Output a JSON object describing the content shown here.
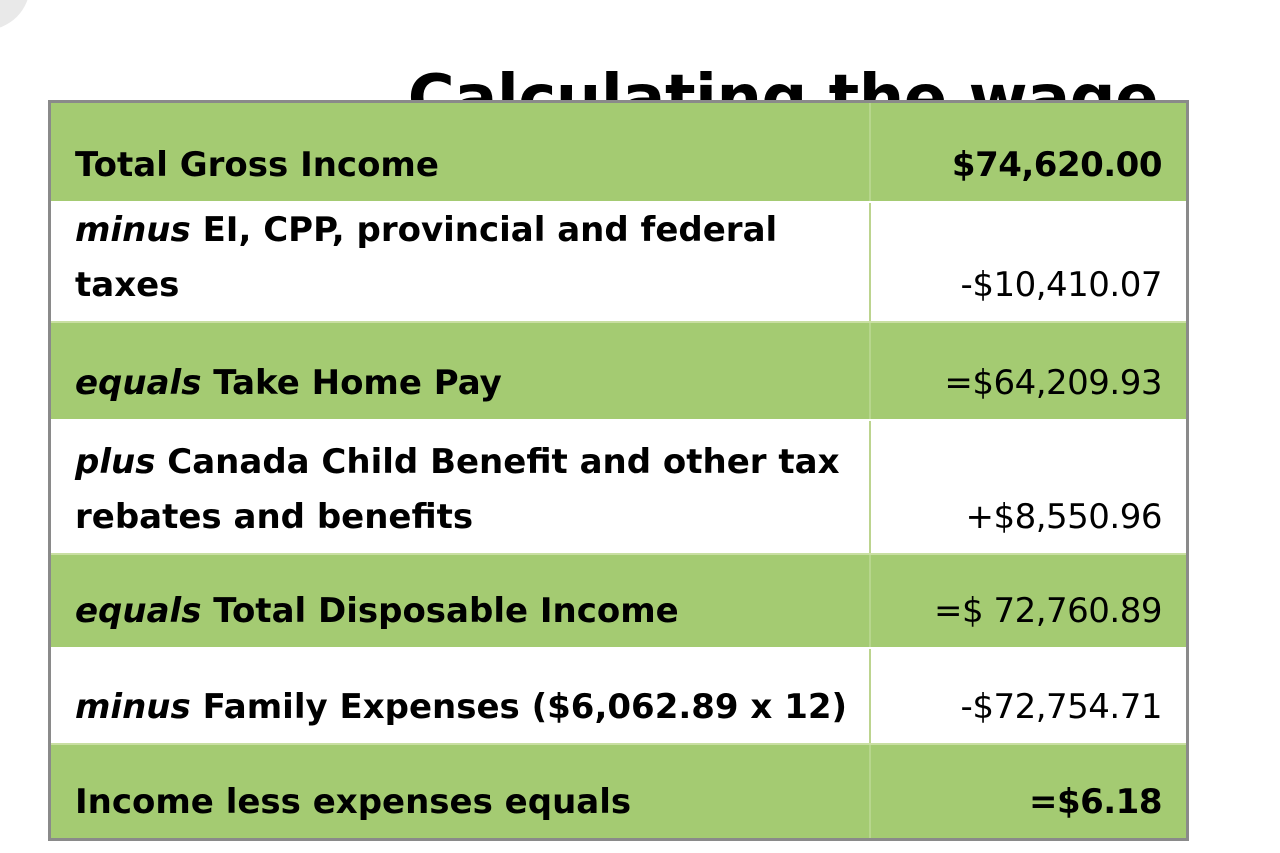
{
  "title": "Calculating the wage",
  "rows": [
    {
      "prefix": "",
      "label": "Total Gross Income",
      "value": "$74,620.00",
      "shade": "green",
      "value_bold": true
    },
    {
      "prefix": "minus",
      "label": " EI, CPP, provincial and federal taxes",
      "value": "-$10,410.07",
      "shade": "white",
      "value_bold": false
    },
    {
      "prefix": "equals",
      "label": " Take Home Pay",
      "value": "=$64,209.93",
      "shade": "green",
      "value_bold": false
    },
    {
      "prefix": "plus",
      "label": " Canada Child Benefit and other tax rebates and benefits",
      "value": "+$8,550.96",
      "shade": "white",
      "value_bold": false
    },
    {
      "prefix": "equals",
      "label": " Total Disposable Income",
      "value": "=$ 72,760.89",
      "shade": "green",
      "value_bold": false
    },
    {
      "prefix": "minus",
      "label": " Family Expenses ($6,062.89 x 12)",
      "value": "-$72,754.71",
      "shade": "white",
      "value_bold": false
    },
    {
      "prefix": "",
      "label": "Income less expenses equals",
      "value": "=$6.18",
      "shade": "green",
      "value_bold": true
    }
  ],
  "colors": {
    "green_row": "#a4cb72",
    "white_row": "#ffffff",
    "border": "#8a8a8a"
  }
}
